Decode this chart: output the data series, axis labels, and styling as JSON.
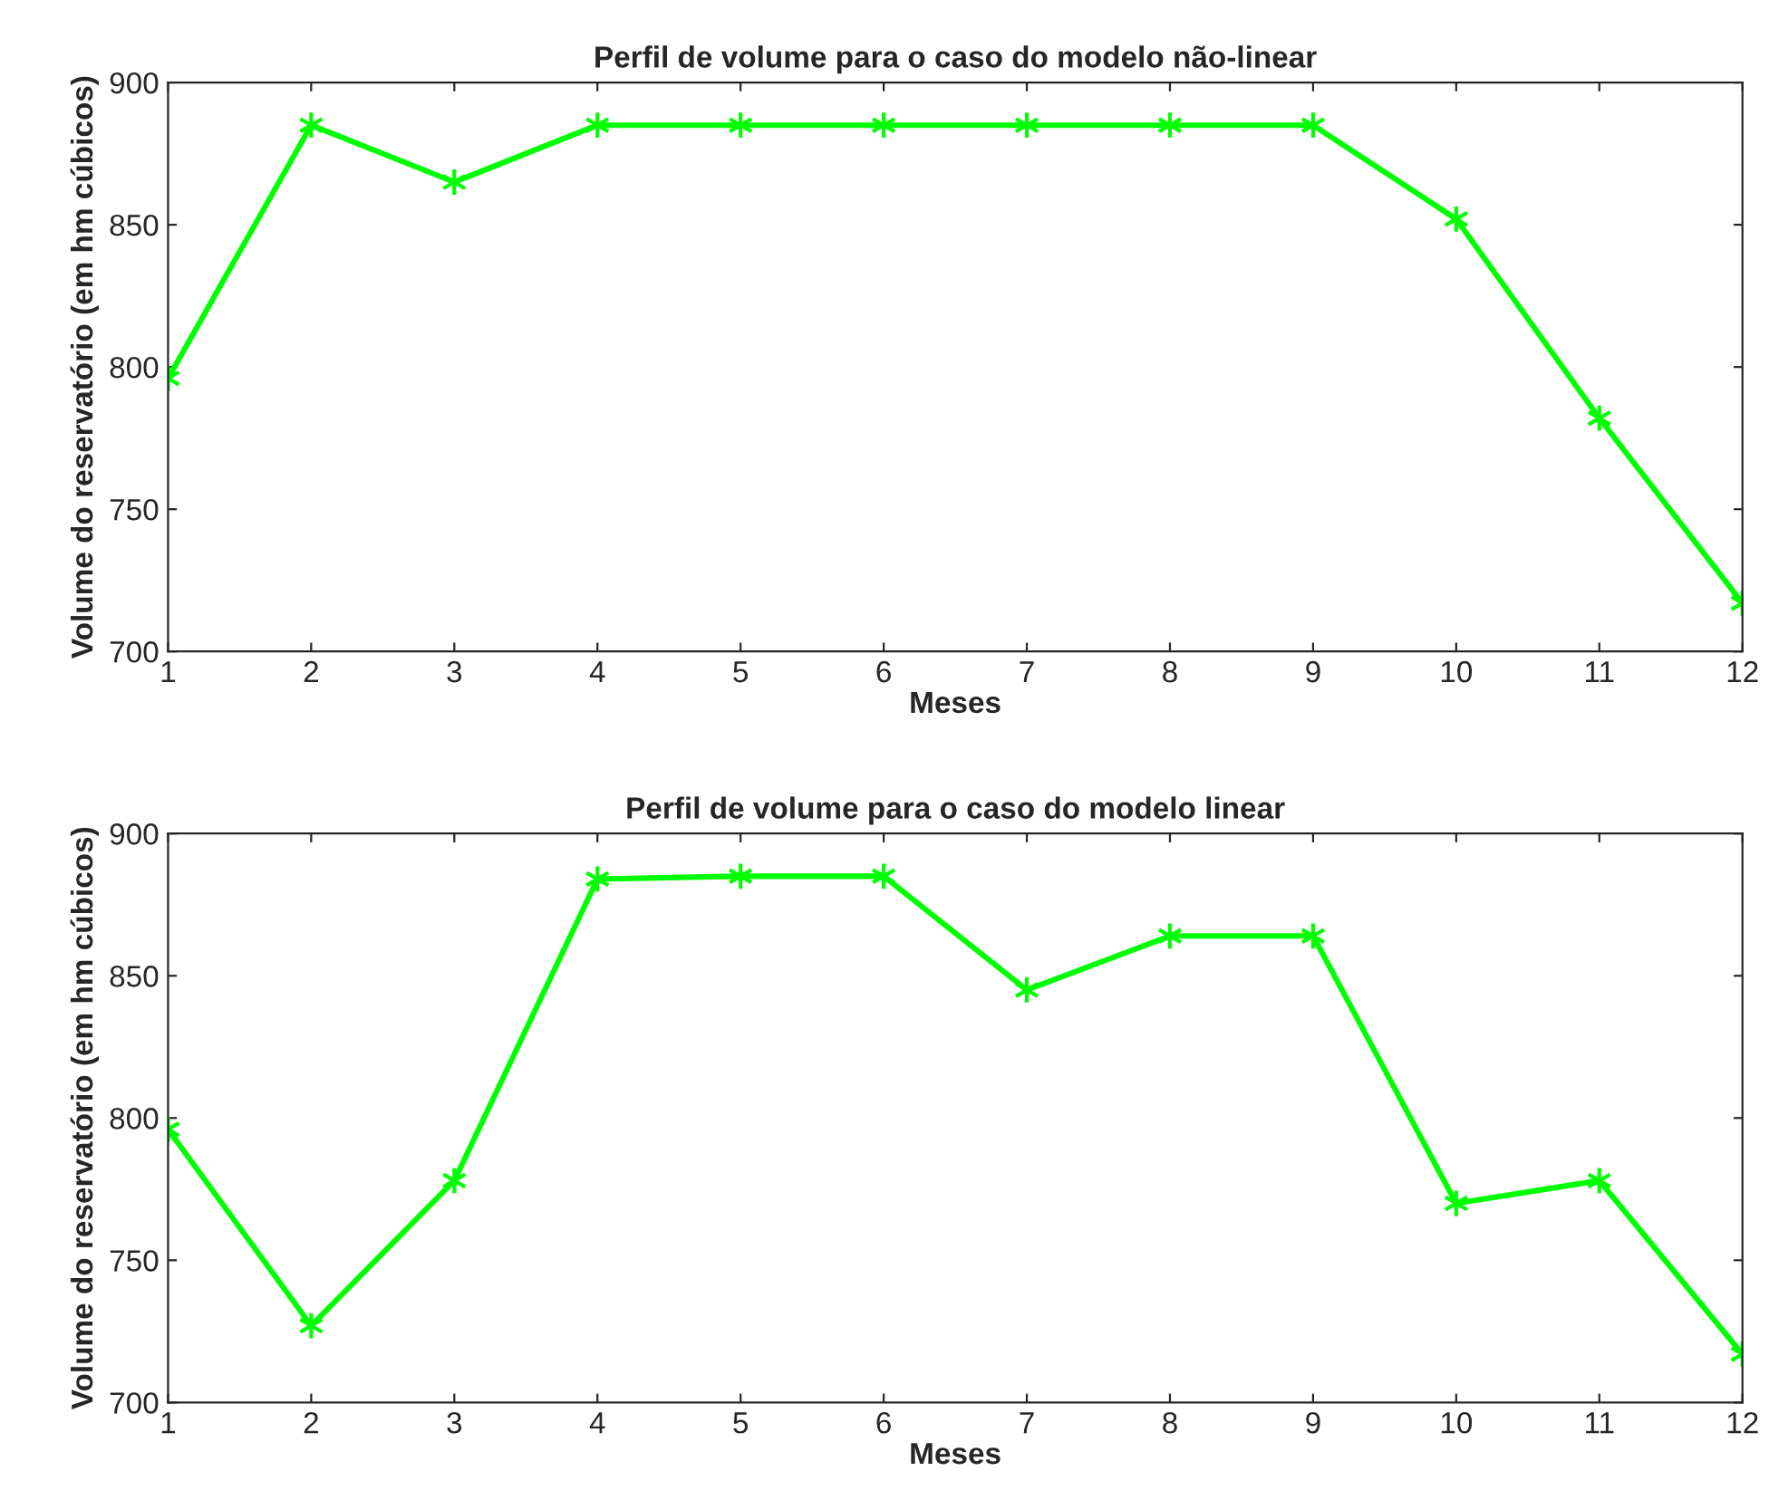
{
  "chart_data": [
    {
      "type": "line",
      "title": "Perfil de volume para o caso do modelo não-linear",
      "xlabel": "Meses",
      "ylabel": "Volume do reservatório (em hm cúbicos)",
      "x": [
        1,
        2,
        3,
        4,
        5,
        6,
        7,
        8,
        9,
        10,
        11,
        12
      ],
      "series": [
        {
          "color": "#00ff00",
          "values": [
            796,
            885,
            865,
            885,
            885,
            885,
            885,
            885,
            885,
            852,
            782,
            717
          ]
        }
      ],
      "xlim": [
        1,
        12
      ],
      "xticks": [
        1,
        2,
        3,
        4,
        5,
        6,
        7,
        8,
        9,
        10,
        11,
        12
      ],
      "ylim": [
        700,
        900
      ],
      "yticks": [
        700,
        750,
        800,
        850,
        900
      ],
      "grid": false,
      "legend": false,
      "marker": "cross",
      "line_style": "solid"
    },
    {
      "type": "line",
      "title": "Perfil de volume para o caso do modelo linear",
      "xlabel": "Meses",
      "ylabel": "Volume do reservatório (em hm cúbicos)",
      "x": [
        1,
        2,
        3,
        4,
        5,
        6,
        7,
        8,
        9,
        10,
        11,
        12
      ],
      "series": [
        {
          "color": "#00ff00",
          "values": [
            796,
            727,
            778,
            884,
            885,
            885,
            845,
            864,
            864,
            770,
            778,
            717
          ]
        }
      ],
      "xlim": [
        1,
        12
      ],
      "xticks": [
        1,
        2,
        3,
        4,
        5,
        6,
        7,
        8,
        9,
        10,
        11,
        12
      ],
      "ylim": [
        700,
        900
      ],
      "yticks": [
        700,
        750,
        800,
        850,
        900
      ],
      "grid": false,
      "legend": false,
      "marker": "cross",
      "line_style": "solid"
    }
  ]
}
